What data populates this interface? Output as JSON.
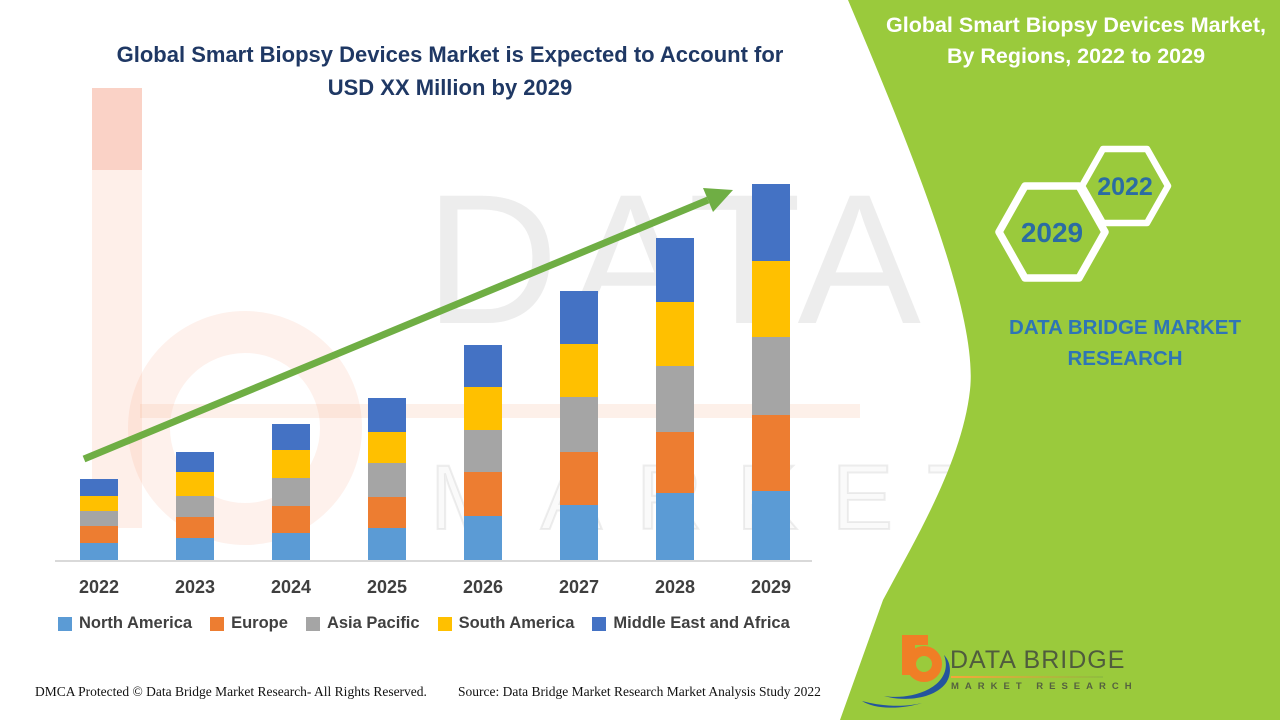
{
  "title": {
    "line1": "Global Smart Biopsy Devices Market is Expected to Account for",
    "line2": "USD XX Million by 2029"
  },
  "banner": {
    "title_line1": "Global Smart Biopsy Devices Market,",
    "title_line2": "By Regions, 2022 to 2029",
    "hex_year_large": "2029",
    "hex_year_small": "2022",
    "brand_line1": "DATA BRIDGE MARKET",
    "brand_line2": "RESEARCH",
    "green_color": "#9aca3c"
  },
  "chart_data": {
    "type": "bar",
    "stacked": true,
    "title": "Global Smart Biopsy Devices Market is Expected to Account for USD XX Million by 2029",
    "xlabel": "",
    "ylabel": "",
    "values_unit": "relative height units (market value shown only as USD XX Million, no numeric axis in figure)",
    "grid": false,
    "legend_position": "bottom",
    "trend_arrow": true,
    "categories": [
      "2022",
      "2023",
      "2024",
      "2025",
      "2026",
      "2027",
      "2028",
      "2029"
    ],
    "series": [
      {
        "name": "North America",
        "color": "#5B9BD5",
        "values": [
          17,
          22,
          27,
          32,
          44,
          55,
          67,
          69
        ]
      },
      {
        "name": "Europe",
        "color": "#ED7D31",
        "values": [
          17,
          21,
          27,
          31,
          44,
          53,
          61,
          76
        ]
      },
      {
        "name": "Asia Pacific",
        "color": "#A5A5A5",
        "values": [
          15,
          21,
          28,
          34,
          42,
          55,
          66,
          78
        ]
      },
      {
        "name": "South America",
        "color": "#FFC000",
        "values": [
          15,
          24,
          28,
          31,
          43,
          53,
          64,
          76
        ]
      },
      {
        "name": "Middle East and Africa",
        "color": "#4472C4",
        "values": [
          17,
          20,
          26,
          34,
          42,
          53,
          64,
          77
        ]
      }
    ],
    "stack_totals": [
      81,
      108,
      136,
      162,
      215,
      269,
      322,
      376
    ],
    "arrow_color": "#6fae44"
  },
  "footer": {
    "dmca": "DMCA Protected © Data Bridge Market Research- All Rights Reserved.",
    "source": "Source: Data Bridge Market Research Market Analysis Study 2022"
  },
  "logo": {
    "name": "DATA BRIDGE",
    "subtitle": "MARKET RESEARCH"
  },
  "watermark": {
    "row1": "DATA B",
    "row2": "MARKET RESEARCH"
  }
}
